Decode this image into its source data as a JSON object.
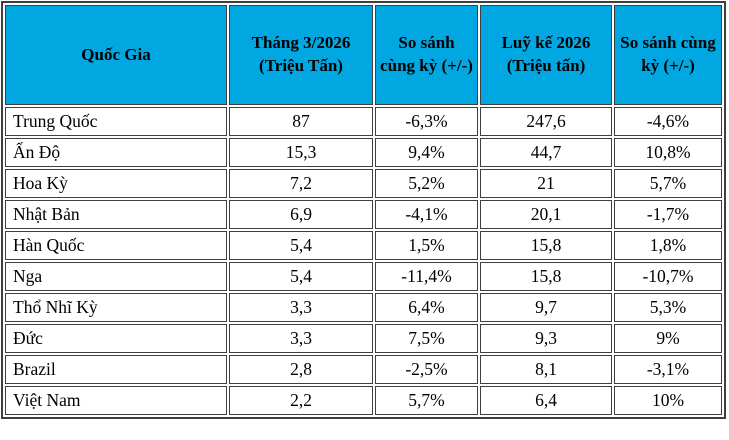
{
  "colors": {
    "header_bg": "#00a7e1",
    "border": "#3f3f3f",
    "text": "#000000",
    "background": "#ffffff"
  },
  "table": {
    "columns": [
      "Quốc Gia",
      "Tháng 3/2026 (Triệu Tấn)",
      "So sánh cùng kỳ (+/-)",
      "Luỹ kế 2026 (Triệu tấn)",
      "So sánh cùng kỳ (+/-)"
    ],
    "rows": [
      [
        "Trung Quốc",
        "87",
        "-6,3%",
        "247,6",
        "-4,6%"
      ],
      [
        "Ấn Độ",
        "15,3",
        "9,4%",
        "44,7",
        "10,8%"
      ],
      [
        "Hoa Kỳ",
        "7,2",
        "5,2%",
        "21",
        "5,7%"
      ],
      [
        "Nhật Bản",
        "6,9",
        "-4,1%",
        "20,1",
        "-1,7%"
      ],
      [
        "Hàn Quốc",
        "5,4",
        "1,5%",
        "15,8",
        "1,8%"
      ],
      [
        "Nga",
        "5,4",
        "-11,4%",
        "15,8",
        "-10,7%"
      ],
      [
        "Thổ Nhĩ Kỳ",
        "3,3",
        "6,4%",
        "9,7",
        "5,3%"
      ],
      [
        "Đức",
        "3,3",
        "7,5%",
        "9,3",
        "9%"
      ],
      [
        "Brazil",
        "2,8",
        "-2,5%",
        "8,1",
        "-3,1%"
      ],
      [
        "Việt Nam",
        "2,2",
        "5,7%",
        "6,4",
        "10%"
      ]
    ]
  },
  "chart_data": {
    "type": "table",
    "title": "",
    "columns": [
      "Quốc Gia",
      "Tháng 3/2026 (Triệu Tấn)",
      "So sánh cùng kỳ (+/-)",
      "Luỹ kế 2026 (Triệu tấn)",
      "So sánh cùng kỳ (+/-)"
    ],
    "categories": [
      "Trung Quốc",
      "Ấn Độ",
      "Hoa Kỳ",
      "Nhật Bản",
      "Hàn Quốc",
      "Nga",
      "Thổ Nhĩ Kỳ",
      "Đức",
      "Brazil",
      "Việt Nam"
    ],
    "series": [
      {
        "name": "Tháng 3/2026 (Triệu Tấn)",
        "values": [
          87,
          15.3,
          7.2,
          6.9,
          5.4,
          5.4,
          3.3,
          3.3,
          2.8,
          2.2
        ]
      },
      {
        "name": "So sánh cùng kỳ tháng (+/-) %",
        "values": [
          -6.3,
          9.4,
          5.2,
          -4.1,
          1.5,
          -11.4,
          6.4,
          7.5,
          -2.5,
          5.7
        ]
      },
      {
        "name": "Luỹ kế 2026 (Triệu tấn)",
        "values": [
          247.6,
          44.7,
          21,
          20.1,
          15.8,
          15.8,
          9.7,
          9.3,
          8.1,
          6.4
        ]
      },
      {
        "name": "So sánh cùng kỳ luỹ kế (+/-) %",
        "values": [
          -4.6,
          10.8,
          5.7,
          -1.7,
          1.8,
          -10.7,
          5.3,
          9,
          -3.1,
          10
        ]
      }
    ]
  }
}
